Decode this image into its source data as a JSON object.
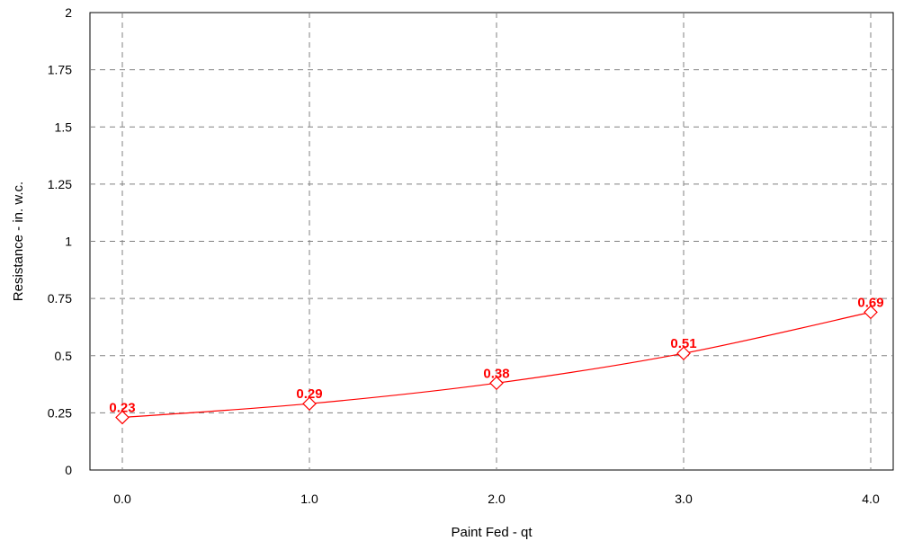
{
  "chart_data": {
    "type": "line",
    "title": "",
    "xlabel": "Paint Fed - qt",
    "ylabel": "Resistance - in. w.c.",
    "x_categories": [
      "0.0",
      "1.0",
      "2.0",
      "3.0",
      "4.0"
    ],
    "y_ticks": [
      "0",
      "0.25",
      "0.5",
      "0.75",
      "1",
      "1.25",
      "1.5",
      "1.75",
      "2"
    ],
    "ylim": [
      0,
      2
    ],
    "grid": true,
    "marker": "diamond",
    "series_color": "#ff0000",
    "series": [
      {
        "values": [
          0.23,
          0.29,
          0.38,
          0.51,
          0.69
        ],
        "labels": [
          "0.23",
          "0.29",
          "0.38",
          "0.51",
          "0.69"
        ]
      }
    ]
  }
}
